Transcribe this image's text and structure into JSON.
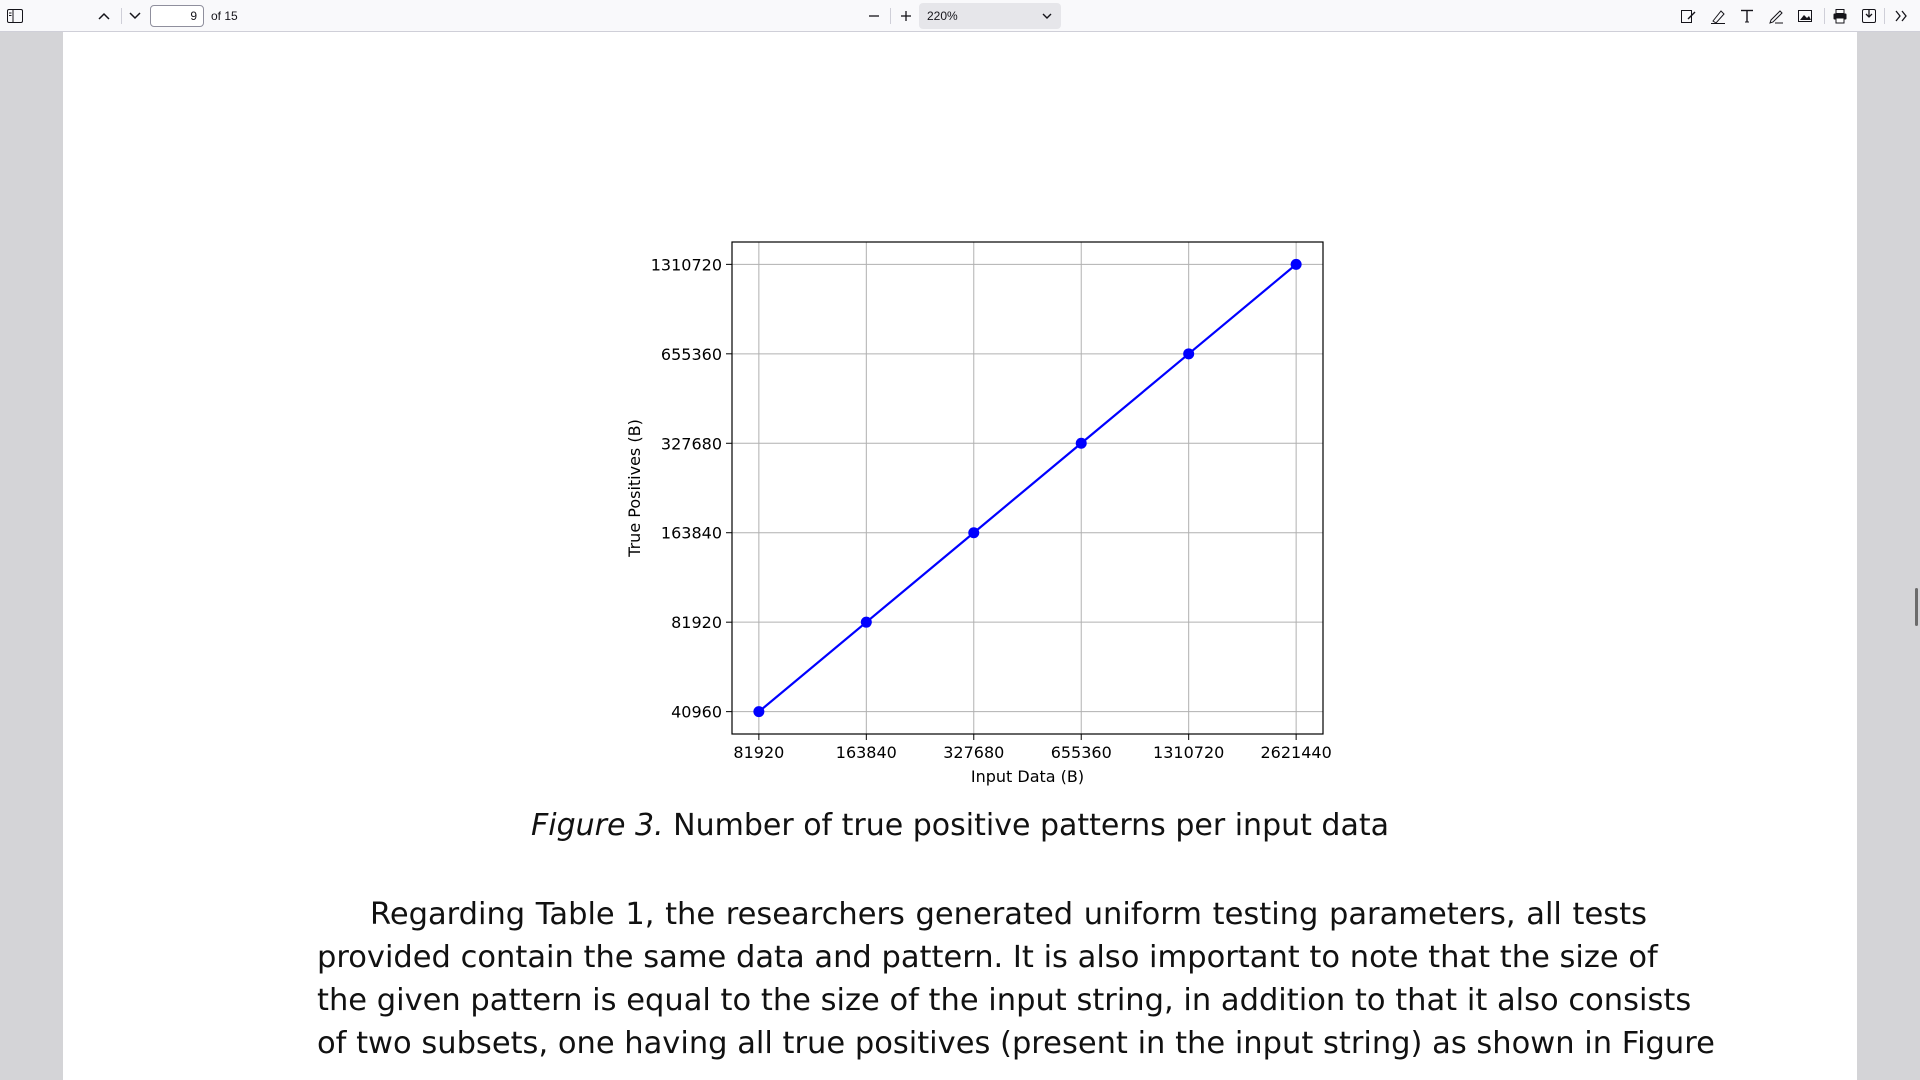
{
  "toolbar": {
    "sidebar_icon": "sidebar-toggle-icon",
    "page_number": "9",
    "page_of": "of 15",
    "zoom_value": "220%",
    "tools": [
      "edit-pdf-icon",
      "highlight-icon",
      "text-icon",
      "draw-icon",
      "image-icon",
      "print-icon",
      "save-icon",
      "more-tools-icon"
    ]
  },
  "document": {
    "caption_fig": "Figure 3.",
    "caption_text": " Number of true positive patterns per input data",
    "paragraph_lines": [
      "Regarding Table 1, the researchers generated uniform testing parameters, all tests",
      "provided contain the same data and pattern. It is also important to note that the size of",
      "the given pattern is equal to the size of the input string, in addition to that it also consists",
      "of two subsets, one having all true positives (present in the input string) as shown in Figure"
    ]
  },
  "chart_data": {
    "type": "line",
    "x": [
      81920,
      163840,
      327680,
      655360,
      1310720,
      2621440
    ],
    "series": [
      {
        "values": [
          40960,
          81920,
          163840,
          327680,
          655360,
          1310720
        ],
        "color": "#0000ff",
        "marker": "circle"
      }
    ],
    "x_ticks": [
      "81920",
      "163840",
      "327680",
      "655360",
      "1310720",
      "2621440"
    ],
    "y_ticks": [
      "40960",
      "81920",
      "163840",
      "327680",
      "655360",
      "1310720"
    ],
    "xlabel": "Input Data (B)",
    "ylabel": "True Positives (B)",
    "x_scale": "log2",
    "y_scale": "log2",
    "grid": true
  }
}
